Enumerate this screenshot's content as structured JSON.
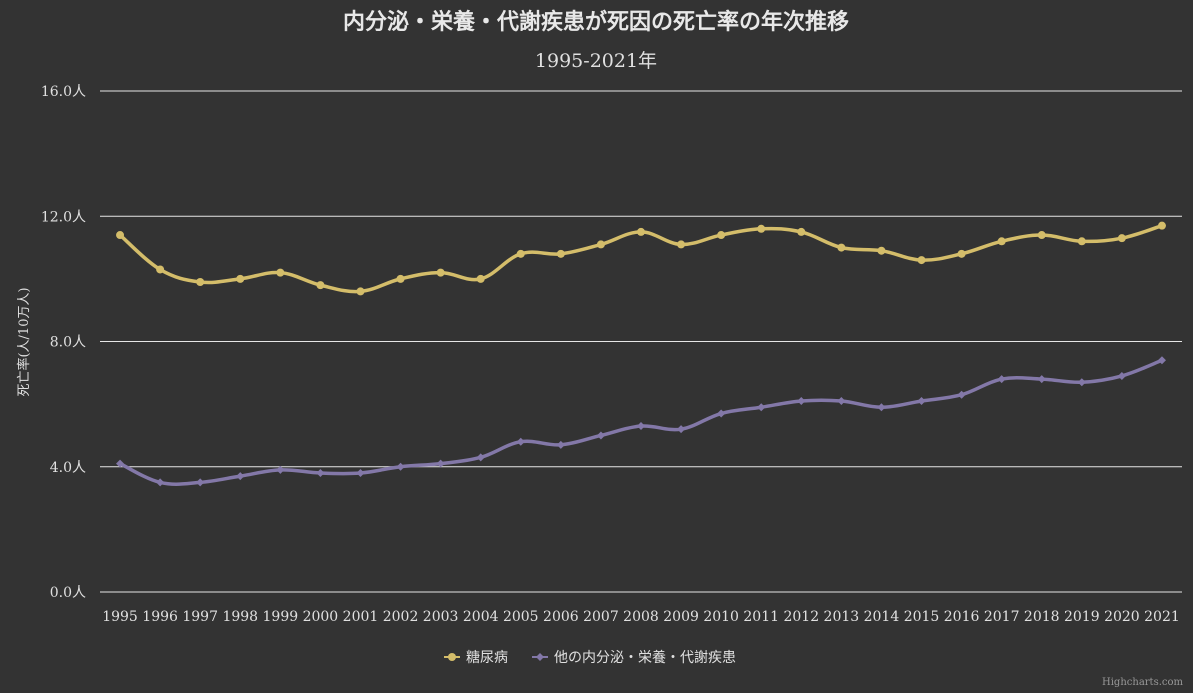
{
  "title": "内分泌・栄養・代謝疾患が死因の死亡率の年次推移",
  "subtitle": "1995-2021年",
  "credit": "Highcharts.com",
  "colors": {
    "background": "#333333",
    "grid": "#e6e6e6"
  },
  "chart_data": {
    "type": "line",
    "title": "内分泌・栄養・代謝疾患が死因の死亡率の年次推移",
    "subtitle": "1995-2021年",
    "xlabel": "",
    "ylabel": "死亡率(人/10万人)",
    "ylim": [
      0,
      16
    ],
    "yticks": [
      {
        "value": 0,
        "label": "0.0人"
      },
      {
        "value": 4,
        "label": "4.0人"
      },
      {
        "value": 8,
        "label": "8.0人"
      },
      {
        "value": 12,
        "label": "12.0人"
      },
      {
        "value": 16,
        "label": "16.0人"
      }
    ],
    "grid": true,
    "legend_position": "bottom-center",
    "categories": [
      "1995",
      "1996",
      "1997",
      "1998",
      "1999",
      "2000",
      "2001",
      "2002",
      "2003",
      "2004",
      "2005",
      "2006",
      "2007",
      "2008",
      "2009",
      "2010",
      "2011",
      "2012",
      "2013",
      "2014",
      "2015",
      "2016",
      "2017",
      "2018",
      "2019",
      "2020",
      "2021"
    ],
    "series": [
      {
        "name": "糖尿病",
        "color": "#d4bd6a",
        "marker": "circle",
        "values": [
          11.4,
          10.3,
          9.9,
          10.0,
          10.2,
          9.8,
          9.6,
          10.0,
          10.2,
          10.0,
          10.8,
          10.8,
          11.1,
          11.5,
          11.1,
          11.4,
          11.6,
          11.5,
          11.0,
          10.9,
          10.6,
          10.8,
          11.2,
          11.4,
          11.2,
          11.3,
          11.7
        ]
      },
      {
        "name": "他の内分泌・栄養・代謝疾患",
        "color": "#8378a8",
        "marker": "diamond",
        "values": [
          4.1,
          3.5,
          3.5,
          3.7,
          3.9,
          3.8,
          3.8,
          4.0,
          4.1,
          4.3,
          4.8,
          4.7,
          5.0,
          5.3,
          5.2,
          5.7,
          5.9,
          6.1,
          6.1,
          5.9,
          6.1,
          6.3,
          6.8,
          6.8,
          6.7,
          6.9,
          7.4
        ]
      }
    ]
  }
}
